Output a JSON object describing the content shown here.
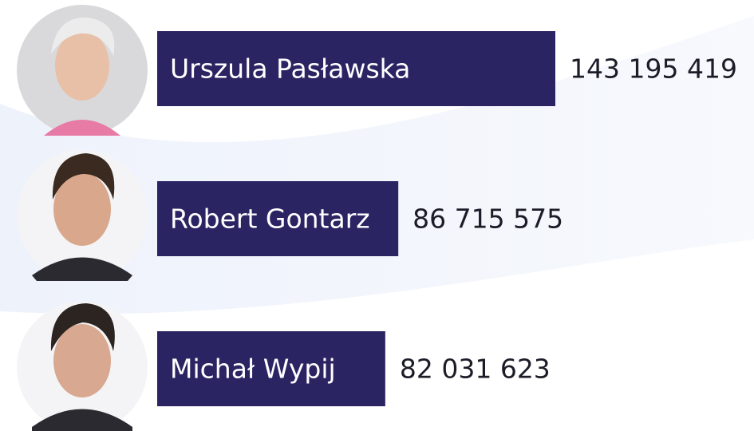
{
  "chart_data": {
    "type": "bar",
    "orientation": "horizontal",
    "categories": [
      "Urszula Pasławska",
      "Robert Gontarz",
      "Michał Wypij"
    ],
    "values": [
      143195419,
      86715575,
      82031623
    ],
    "value_labels": [
      "143 195 419",
      "86 715 575",
      "82 031 623"
    ],
    "color": "#2a2463",
    "xlim": [
      0,
      143195419
    ]
  }
}
